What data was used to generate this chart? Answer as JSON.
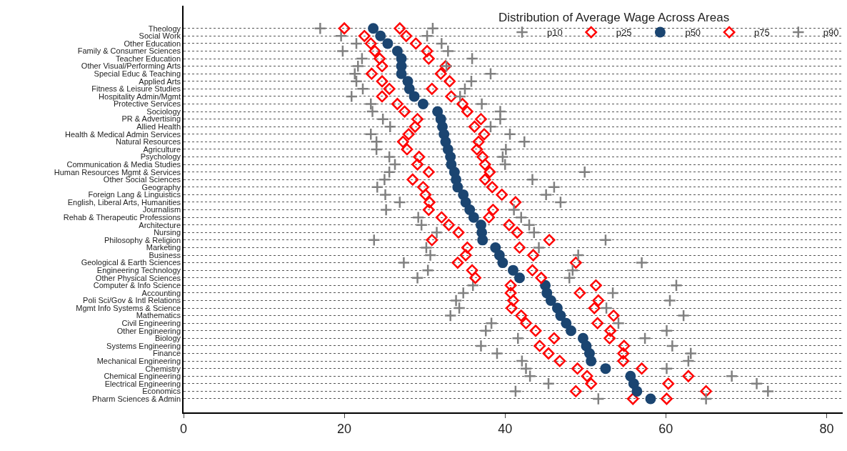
{
  "chart_data": {
    "type": "scatter",
    "legend_title": "Distribution of Average Wage Across Areas",
    "categories": [
      "Theology",
      "Social Work",
      "Other Education",
      "Family & Consumer Sciences",
      "Teacher Education",
      "Other Visual/Performing Arts",
      "Special Educ & Teaching",
      "Applied Arts",
      "Fitness & Leisure Studies",
      "Hospitality Admin/Mgmt",
      "Protective Services",
      "Sociology",
      "PR & Advertising",
      "Allied Health",
      "Health & Medical Admin Services",
      "Natural Resources",
      "Agriculture",
      "Psychology",
      "Communication & Media Studies",
      "Human Resources Mgmt & Services",
      "Other Social Sciences",
      "Geography",
      "Foreign Lang & Linguistics",
      "English, Liberal Arts, Humanities",
      "Journalism",
      "Rehab & Therapeutic Professions",
      "Architecture",
      "Nursing",
      "Philosophy & Religion",
      "Marketing",
      "Business",
      "Geological & Earth Sciences",
      "Engineering Technology",
      "Other Physical Sciences",
      "Computer & Info Science",
      "Accounting",
      "Poli Sci/Gov & Intl Relations",
      "Mgmt Info Systems & Science",
      "Mathematics",
      "Civil Engineering",
      "Other Engineering",
      "Biology",
      "Systems Engineering",
      "Finance",
      "Mechanical Engineering",
      "Chemistry",
      "Chemical Engineering",
      "Electrical Engineering",
      "Economics",
      "Pharm Sciences & Admin"
    ],
    "series": [
      {
        "name": "p10",
        "color": "#808080",
        "marker": "cross",
        "values": [
          17,
          19.6,
          21.5,
          19.8,
          22.2,
          21.7,
          21.3,
          21.5,
          22.3,
          20.9,
          23.3,
          23.5,
          24.8,
          25.7,
          23.3,
          24,
          24,
          25.6,
          26.3,
          25.6,
          25,
          24.1,
          25.1,
          26.9,
          25.2,
          29.2,
          29.6,
          31.5,
          23.7,
          30.2,
          30.7,
          27.4,
          30.4,
          29.1,
          36,
          34.8,
          33.9,
          34.3,
          33.2,
          38.3,
          37.6,
          41.6,
          37,
          39,
          42.1,
          42.6,
          43.1,
          45.4,
          41.3,
          51.6
        ]
      },
      {
        "name": "p25",
        "color": "#ff0000",
        "marker": "diamond",
        "values": [
          20,
          22.5,
          23.3,
          23.8,
          24.4,
          24.7,
          23.4,
          24.7,
          25.6,
          24.7,
          26.6,
          27.5,
          29.1,
          28.8,
          28,
          27.3,
          27.8,
          29.3,
          29.1,
          30.5,
          28.5,
          29.8,
          30.1,
          30.6,
          30.5,
          32.1,
          33,
          34.2,
          30.9,
          35.3,
          35.1,
          34.1,
          35.9,
          36.3,
          40.7,
          40.7,
          41,
          40.8,
          42,
          42.6,
          43.8,
          46.1,
          44.3,
          45.4,
          46.8,
          49,
          50.2,
          50.7,
          48.8,
          55.9
        ]
      },
      {
        "name": "p50",
        "color": "#1b4571",
        "marker": "circle",
        "values": [
          23.6,
          24.5,
          25.4,
          26.6,
          27.1,
          27.1,
          27.1,
          27.9,
          28.1,
          28.7,
          29.8,
          31.6,
          32,
          32.2,
          32.4,
          32.6,
          32.9,
          33.2,
          33.3,
          33.7,
          33.9,
          34.1,
          34.8,
          35.1,
          35.6,
          36.1,
          37,
          37.1,
          37.2,
          38.8,
          39.3,
          39.7,
          41,
          41.8,
          45,
          45.2,
          45.7,
          46.5,
          46.9,
          47.6,
          48.2,
          49.7,
          50.1,
          50.5,
          50.7,
          52.5,
          55.6,
          56,
          56.4,
          58.1
        ]
      },
      {
        "name": "p75",
        "color": "#ff0000",
        "marker": "diamond",
        "values": [
          26.9,
          27.7,
          28.9,
          30.3,
          30.5,
          32.6,
          32,
          33.1,
          30.9,
          33.3,
          34.7,
          35.3,
          37,
          36.2,
          37.4,
          36.7,
          36.5,
          37.2,
          37.5,
          38.1,
          37.5,
          38.4,
          39.6,
          41.3,
          38.5,
          38,
          40.5,
          41.5,
          45.5,
          41.8,
          43.5,
          48.8,
          43.4,
          44.5,
          51.3,
          49.3,
          51.6,
          51.1,
          53.5,
          51.5,
          53.1,
          53,
          54.8,
          54.7,
          54.7,
          57,
          62.8,
          60.3,
          65,
          60.1
        ]
      },
      {
        "name": "p90",
        "color": "#808080",
        "marker": "cross",
        "values": [
          31,
          30.3,
          32.1,
          32.9,
          35.9,
          32.7,
          38.2,
          35.8,
          35,
          34.4,
          37.1,
          39.4,
          39.4,
          38.2,
          40.6,
          42.4,
          40.1,
          39.7,
          40,
          49.9,
          43.4,
          46.1,
          45.1,
          46.9,
          41.1,
          42,
          43,
          43.6,
          52.5,
          44.2,
          49.1,
          57,
          48.4,
          48,
          61.3,
          53.4,
          60.5,
          52.6,
          62.2,
          54.1,
          60.1,
          57.4,
          60.8,
          63.1,
          62.8,
          60.1,
          68.2,
          71.3,
          72.7,
          65
        ]
      }
    ],
    "orientation": "horizontal",
    "xlim": [
      0,
      82
    ],
    "xticks": [
      0,
      20,
      40,
      60,
      80
    ],
    "grid": "y",
    "legend": "top right"
  }
}
